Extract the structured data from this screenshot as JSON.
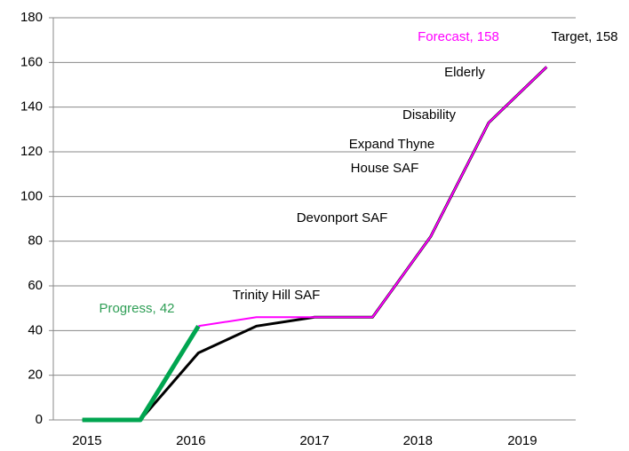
{
  "chart_data": {
    "type": "line",
    "categories": [
      null,
      null,
      null,
      null,
      null,
      null,
      null,
      null,
      null
    ],
    "series": [
      {
        "color": "#000000",
        "width": 3,
        "values": [
          0,
          0,
          30,
          42,
          46,
          46,
          82,
          133,
          158
        ]
      },
      {
        "color": "#ff00ff",
        "width": 2,
        "values": [
          null,
          null,
          42,
          46,
          46,
          46,
          82,
          133,
          158
        ]
      },
      {
        "color": "#00a550",
        "width": 5,
        "values": [
          0,
          0,
          42,
          null,
          null,
          null,
          null,
          null,
          null
        ]
      }
    ],
    "xticks": [
      {
        "value": 0.08,
        "label": "2015"
      },
      {
        "value": 1.87,
        "label": "2016"
      },
      {
        "value": 4.0,
        "label": "2017"
      },
      {
        "value": 5.78,
        "label": "2018"
      },
      {
        "value": 7.58,
        "label": "2019"
      }
    ],
    "ylim": [
      0,
      180
    ],
    "yticks": [
      0,
      20,
      40,
      60,
      80,
      100,
      120,
      140,
      160,
      180
    ],
    "grid": true,
    "annotations": [
      {
        "text": "Forecast, 158",
        "color": "#ff00ff"
      },
      {
        "text": "Target, 158",
        "color": "#000000"
      },
      {
        "text": "Elderly",
        "color": "#000000"
      },
      {
        "text": "Disability",
        "color": "#000000"
      },
      {
        "text": "Expand Thyne",
        "color": "#000000"
      },
      {
        "text": "House SAF",
        "color": "#000000"
      },
      {
        "text": "Devonport SAF",
        "color": "#000000"
      },
      {
        "text": "Trinity Hill SAF",
        "color": "#000000"
      },
      {
        "text": "Progress, 42",
        "color": "#2e9e55"
      }
    ]
  }
}
